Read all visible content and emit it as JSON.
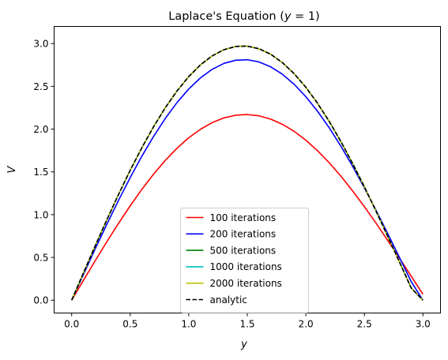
{
  "chart_data": {
    "type": "line",
    "title": "Laplace's Equation (y = 1)",
    "title_parts": [
      "Laplace's Equation (",
      "y",
      " = 1)"
    ],
    "xlabel": "y",
    "ylabel": "V",
    "xlim": [
      -0.15,
      3.15
    ],
    "ylim": [
      -0.15,
      3.2
    ],
    "xticks": [
      0.0,
      0.5,
      1.0,
      1.5,
      2.0,
      2.5,
      3.0
    ],
    "xtick_labels": [
      "0.0",
      "0.5",
      "1.0",
      "1.5",
      "2.0",
      "2.5",
      "3.0"
    ],
    "yticks": [
      0.0,
      0.5,
      1.0,
      1.5,
      2.0,
      2.5,
      3.0
    ],
    "ytick_labels": [
      "0.0",
      "0.5",
      "1.0",
      "1.5",
      "2.0",
      "2.5",
      "3.0"
    ],
    "grid": false,
    "legend_position": "lower center",
    "x": [
      0.0,
      0.1,
      0.2,
      0.3,
      0.4,
      0.5,
      0.6,
      0.7,
      0.8,
      0.9,
      1.0,
      1.1,
      1.2,
      1.3,
      1.4,
      1.5,
      1.6,
      1.7,
      1.8,
      1.9,
      2.0,
      2.1,
      2.2,
      2.3,
      2.4,
      2.5,
      2.6,
      2.7,
      2.8,
      2.9,
      3.0
    ],
    "series": [
      {
        "name": "100 iterations",
        "color": "#ff0000",
        "dash": "solid",
        "values": [
          0.0,
          0.231,
          0.459,
          0.683,
          0.898,
          1.104,
          1.297,
          1.474,
          1.635,
          1.777,
          1.899,
          1.998,
          2.076,
          2.131,
          2.162,
          2.17,
          2.155,
          2.117,
          2.056,
          1.974,
          1.87,
          1.747,
          1.606,
          1.449,
          1.277,
          1.093,
          0.899,
          0.697,
          0.49,
          0.281,
          0.07
        ]
      },
      {
        "name": "200 iterations",
        "color": "#0000ff",
        "dash": "solid",
        "values": [
          0.0,
          0.3,
          0.597,
          0.887,
          1.167,
          1.434,
          1.685,
          1.916,
          2.126,
          2.311,
          2.469,
          2.599,
          2.699,
          2.768,
          2.805,
          2.811,
          2.785,
          2.728,
          2.641,
          2.524,
          2.379,
          2.209,
          2.015,
          1.799,
          1.564,
          1.313,
          1.05,
          0.777,
          0.498,
          0.217,
          0.0
        ]
      },
      {
        "name": "500 iterations",
        "color": "#008000",
        "dash": "solid",
        "values": [
          0.0,
          0.318,
          0.632,
          0.939,
          1.236,
          1.519,
          1.784,
          2.029,
          2.251,
          2.447,
          2.614,
          2.751,
          2.856,
          2.928,
          2.966,
          2.97,
          2.939,
          2.875,
          2.777,
          2.648,
          2.489,
          2.302,
          2.089,
          1.853,
          1.597,
          1.325,
          1.04,
          0.745,
          0.445,
          0.142,
          0.0
        ]
      },
      {
        "name": "1000 iterations",
        "color": "#00bfbf",
        "dash": "solid",
        "values": [
          0.0,
          0.318,
          0.632,
          0.939,
          1.236,
          1.519,
          1.784,
          2.029,
          2.251,
          2.447,
          2.614,
          2.751,
          2.856,
          2.928,
          2.966,
          2.97,
          2.939,
          2.875,
          2.777,
          2.648,
          2.489,
          2.302,
          2.089,
          1.853,
          1.597,
          1.325,
          1.04,
          0.745,
          0.445,
          0.142,
          0.0
        ]
      },
      {
        "name": "2000 iterations",
        "color": "#bfbf00",
        "dash": "solid",
        "values": [
          0.0,
          0.318,
          0.632,
          0.939,
          1.236,
          1.519,
          1.784,
          2.029,
          2.251,
          2.447,
          2.614,
          2.751,
          2.856,
          2.928,
          2.966,
          2.97,
          2.939,
          2.875,
          2.777,
          2.648,
          2.489,
          2.302,
          2.089,
          1.853,
          1.597,
          1.325,
          1.04,
          0.745,
          0.445,
          0.142,
          0.0
        ]
      },
      {
        "name": "analytic",
        "color": "#000000",
        "dash": "dashed",
        "values": [
          0.0,
          0.318,
          0.632,
          0.939,
          1.236,
          1.519,
          1.784,
          2.029,
          2.251,
          2.447,
          2.614,
          2.751,
          2.856,
          2.928,
          2.966,
          2.97,
          2.939,
          2.875,
          2.777,
          2.648,
          2.489,
          2.302,
          2.089,
          1.853,
          1.597,
          1.325,
          1.04,
          0.745,
          0.445,
          0.142,
          0.0
        ]
      }
    ]
  }
}
